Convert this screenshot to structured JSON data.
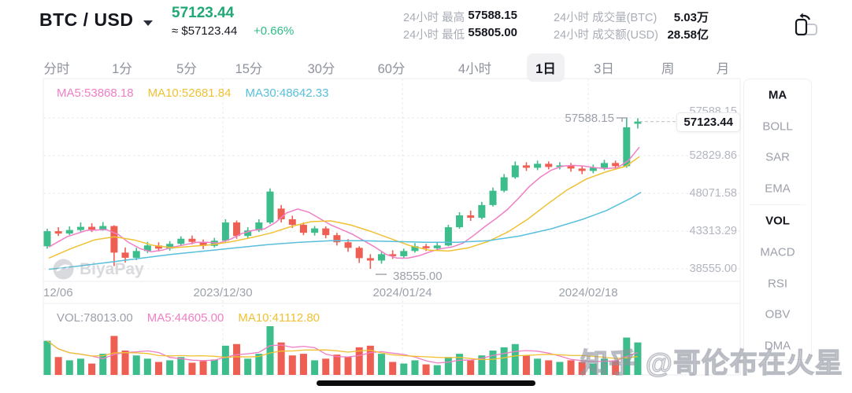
{
  "header": {
    "symbol": "BTC / USD",
    "price": "57123.44",
    "approx": "≈ $57123.44",
    "change": "+0.66%",
    "stats": [
      {
        "label": "24小时 最高",
        "value": "57588.15"
      },
      {
        "label": "24小时 最低",
        "value": "55805.00"
      },
      {
        "label": "24小时 成交量(BTC)",
        "value": "5.03万"
      },
      {
        "label": "24小时 成交额(USD)",
        "value": "28.58亿"
      }
    ]
  },
  "tabs": {
    "items": [
      "分时",
      "1分",
      "5分",
      "15分",
      "30分",
      "60分",
      "4小时",
      "1日",
      "3日",
      "周",
      "月"
    ],
    "active": "1日"
  },
  "indicators": {
    "items": [
      "MA",
      "BOLL",
      "SAR",
      "EMA",
      "VOL",
      "MACD",
      "RSI",
      "OBV",
      "DMA"
    ],
    "active": [
      "MA",
      "VOL"
    ]
  },
  "colors": {
    "up": "#3dbd8b",
    "down": "#ef5e52",
    "ma5": "#f07fc5",
    "ma10": "#efc133",
    "ma30": "#58bfdc",
    "price_green": "#21a876",
    "grid": "#e8e9ec",
    "border": "#ededf0",
    "axis_text": "#9ca1ab"
  },
  "watermarks": {
    "biyapay": "BiyaPay",
    "zhihu": "知乎 @哥伦布在火星"
  },
  "chart_data": {
    "type": "candlestick",
    "interval": "1日",
    "legend": [
      {
        "label": "MA5:53868.18",
        "color": "#f07fc5"
      },
      {
        "label": "MA10:52681.84",
        "color": "#efc133"
      },
      {
        "label": "MA30:48642.33",
        "color": "#58bfdc"
      }
    ],
    "vol_legend": [
      {
        "label": "VOL:78013.00",
        "color": "#9ba0ab"
      },
      {
        "label": "MA5:44605.00",
        "color": "#f07fc5"
      },
      {
        "label": "MA10:41112.80",
        "color": "#efc133"
      }
    ],
    "y_axis_values": [
      57588.15,
      52829.86,
      48071.58,
      43313.29,
      38555.0
    ],
    "x_axis_labels": [
      "12/06",
      "2023/12/30",
      "2024/01/24",
      "2024/02/18"
    ],
    "high_annotation": "57588.15",
    "low_annotation": "38555.00",
    "current_price_label": "57123.44",
    "current_price_value": 57123.44,
    "candles_ohlcv": [
      [
        41400,
        43600,
        41100,
        43300,
        42
      ],
      [
        43300,
        43800,
        42700,
        43000,
        22
      ],
      [
        43000,
        43900,
        42800,
        43450,
        18
      ],
      [
        43450,
        44400,
        43250,
        43850,
        20
      ],
      [
        43850,
        44300,
        43200,
        43500,
        14
      ],
      [
        43500,
        44450,
        43350,
        43950,
        26
      ],
      [
        43950,
        44050,
        38900,
        40600,
        48
      ],
      [
        40600,
        41250,
        39350,
        39950,
        30
      ],
      [
        39950,
        41200,
        39650,
        40800,
        24
      ],
      [
        40800,
        41950,
        40550,
        41500,
        20
      ],
      [
        41500,
        41900,
        40750,
        41100,
        16
      ],
      [
        41100,
        42050,
        40850,
        41700,
        18
      ],
      [
        41700,
        42650,
        41450,
        42350,
        22
      ],
      [
        42350,
        42750,
        41650,
        41950,
        15
      ],
      [
        41950,
        42250,
        41050,
        41450,
        17
      ],
      [
        41450,
        42450,
        41250,
        42100,
        19
      ],
      [
        42100,
        44800,
        41950,
        44400,
        36
      ],
      [
        44400,
        44650,
        42350,
        42700,
        38
      ],
      [
        42700,
        43800,
        42400,
        43400,
        20
      ],
      [
        43400,
        44800,
        43200,
        44400,
        26
      ],
      [
        44400,
        48700,
        44200,
        48300,
        60
      ],
      [
        46150,
        46600,
        44400,
        44800,
        40
      ],
      [
        44800,
        45250,
        43700,
        44100,
        24
      ],
      [
        44100,
        44400,
        42800,
        43100,
        26
      ],
      [
        43100,
        43950,
        42750,
        43650,
        18
      ],
      [
        43650,
        43900,
        42400,
        42800,
        20
      ],
      [
        42800,
        43100,
        41500,
        41900,
        25
      ],
      [
        41900,
        42300,
        40700,
        41200,
        22
      ],
      [
        41200,
        41400,
        39300,
        39900,
        34
      ],
      [
        39900,
        40400,
        38555,
        39600,
        36
      ],
      [
        39600,
        40700,
        39200,
        40400,
        26
      ],
      [
        40400,
        40900,
        39800,
        40150,
        16
      ],
      [
        40150,
        41100,
        39900,
        40800,
        14
      ],
      [
        40800,
        41800,
        40600,
        41400,
        18
      ],
      [
        41400,
        41700,
        40800,
        41150,
        13
      ],
      [
        41150,
        41900,
        40900,
        41500,
        12
      ],
      [
        41500,
        44100,
        41400,
        43800,
        22
      ],
      [
        43800,
        45700,
        43600,
        45300,
        26
      ],
      [
        45300,
        45900,
        44600,
        45000,
        18
      ],
      [
        45000,
        47000,
        44800,
        46600,
        24
      ],
      [
        46600,
        48800,
        46400,
        48400,
        30
      ],
      [
        48400,
        50500,
        48200,
        50100,
        34
      ],
      [
        50100,
        52100,
        49900,
        51600,
        38
      ],
      [
        51600,
        52000,
        50900,
        51300,
        24
      ],
      [
        51300,
        52200,
        51000,
        51800,
        20
      ],
      [
        51800,
        52100,
        51100,
        51400,
        18
      ],
      [
        51400,
        52000,
        51100,
        51600,
        16
      ],
      [
        51600,
        51900,
        50800,
        51200,
        18
      ],
      [
        51200,
        51600,
        50500,
        50900,
        16
      ],
      [
        50900,
        51700,
        50600,
        51300,
        14
      ],
      [
        51300,
        52300,
        51000,
        51900,
        20
      ],
      [
        51900,
        52200,
        51100,
        51500,
        18
      ],
      [
        51500,
        57588.15,
        51300,
        56400,
        46
      ],
      [
        56850,
        57550,
        56250,
        57123.44,
        40
      ]
    ],
    "ma5_line": [
      [
        62,
        41300
      ],
      [
        85,
        42600
      ],
      [
        110,
        43400
      ],
      [
        135,
        43500
      ],
      [
        150,
        42900
      ],
      [
        163,
        41900
      ],
      [
        178,
        41100
      ],
      [
        192,
        40700
      ],
      [
        206,
        40900
      ],
      [
        220,
        41300
      ],
      [
        235,
        41600
      ],
      [
        250,
        41900
      ],
      [
        264,
        41900
      ],
      [
        278,
        41800
      ],
      [
        293,
        42300
      ],
      [
        307,
        43000
      ],
      [
        321,
        43400
      ],
      [
        336,
        43600
      ],
      [
        350,
        44400
      ],
      [
        364,
        45600
      ],
      [
        378,
        46100
      ],
      [
        392,
        45700
      ],
      [
        406,
        44900
      ],
      [
        420,
        44100
      ],
      [
        434,
        43500
      ],
      [
        448,
        42900
      ],
      [
        462,
        42100
      ],
      [
        476,
        41300
      ],
      [
        490,
        40400
      ],
      [
        504,
        39900
      ],
      [
        518,
        39900
      ],
      [
        532,
        40200
      ],
      [
        546,
        40700
      ],
      [
        560,
        41100
      ],
      [
        574,
        41300
      ],
      [
        588,
        41800
      ],
      [
        602,
        42800
      ],
      [
        616,
        43900
      ],
      [
        630,
        44900
      ],
      [
        644,
        46000
      ],
      [
        658,
        47400
      ],
      [
        672,
        48900
      ],
      [
        686,
        50100
      ],
      [
        700,
        51000
      ],
      [
        714,
        51500
      ],
      [
        728,
        51600
      ],
      [
        742,
        51500
      ],
      [
        756,
        51300
      ],
      [
        770,
        51200
      ],
      [
        784,
        51300
      ],
      [
        798,
        52200
      ],
      [
        812,
        53900
      ]
    ],
    "ma10_line": [
      [
        62,
        39900
      ],
      [
        90,
        41100
      ],
      [
        120,
        42200
      ],
      [
        145,
        42600
      ],
      [
        170,
        42200
      ],
      [
        195,
        41500
      ],
      [
        220,
        41200
      ],
      [
        245,
        41400
      ],
      [
        270,
        41600
      ],
      [
        295,
        42000
      ],
      [
        320,
        42500
      ],
      [
        345,
        43100
      ],
      [
        370,
        43900
      ],
      [
        395,
        44500
      ],
      [
        420,
        44600
      ],
      [
        445,
        44100
      ],
      [
        470,
        43300
      ],
      [
        495,
        42400
      ],
      [
        520,
        41500
      ],
      [
        545,
        40900
      ],
      [
        570,
        40800
      ],
      [
        595,
        41200
      ],
      [
        620,
        42000
      ],
      [
        645,
        43200
      ],
      [
        670,
        44800
      ],
      [
        695,
        46700
      ],
      [
        720,
        48500
      ],
      [
        745,
        49900
      ],
      [
        770,
        50800
      ],
      [
        795,
        51500
      ],
      [
        812,
        52700
      ]
    ],
    "ma30_line": [
      [
        62,
        38500
      ],
      [
        100,
        38900
      ],
      [
        140,
        39400
      ],
      [
        180,
        39900
      ],
      [
        220,
        40400
      ],
      [
        260,
        40800
      ],
      [
        300,
        41200
      ],
      [
        340,
        41600
      ],
      [
        380,
        41900
      ],
      [
        420,
        42100
      ],
      [
        460,
        42100
      ],
      [
        500,
        42000
      ],
      [
        540,
        41900
      ],
      [
        580,
        41900
      ],
      [
        620,
        42100
      ],
      [
        660,
        42700
      ],
      [
        700,
        43600
      ],
      [
        740,
        44800
      ],
      [
        770,
        45900
      ],
      [
        800,
        47400
      ],
      [
        814,
        48200
      ]
    ]
  }
}
